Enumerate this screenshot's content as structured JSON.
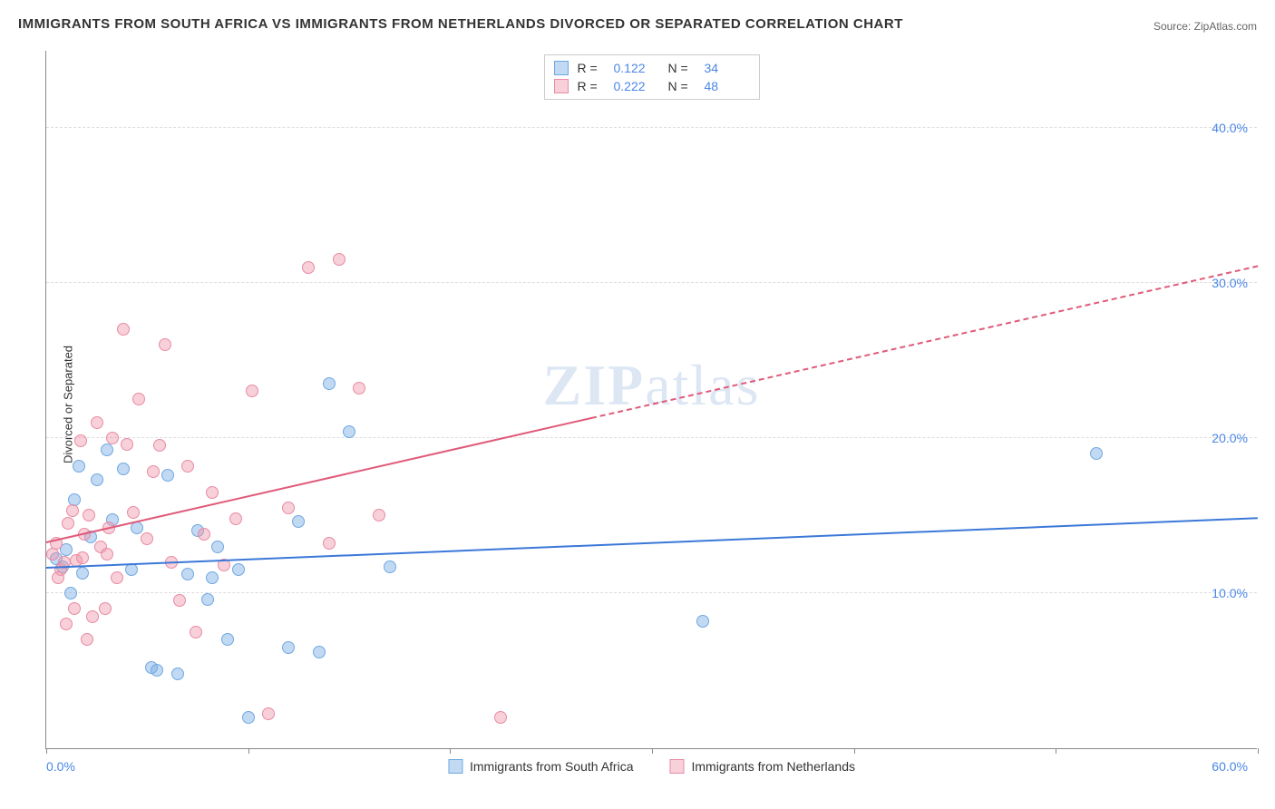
{
  "title": "IMMIGRANTS FROM SOUTH AFRICA VS IMMIGRANTS FROM NETHERLANDS DIVORCED OR SEPARATED CORRELATION CHART",
  "source": "Source: ZipAtlas.com",
  "ylabel": "Divorced or Separated",
  "watermark": "ZIPatlas",
  "chart": {
    "type": "scatter",
    "xlim": [
      0,
      60
    ],
    "ylim": [
      0,
      45
    ],
    "x_ticks_label_min": "0.0%",
    "x_ticks_label_max": "60.0%",
    "x_tick_positions": [
      0,
      10,
      20,
      30,
      40,
      50,
      60
    ],
    "y_gridlines": [
      10,
      20,
      30,
      40
    ],
    "y_tick_labels": [
      "10.0%",
      "20.0%",
      "30.0%",
      "40.0%"
    ],
    "background_color": "#ffffff",
    "grid_color": "#dddddd",
    "axis_color": "#888888",
    "tick_label_color": "#4a86e8",
    "series": [
      {
        "name": "Immigrants from South Africa",
        "color_fill": "rgba(120, 170, 230, 0.45)",
        "color_stroke": "#6fa8e0",
        "marker_size": 14,
        "r": "0.122",
        "n": "34",
        "trend": {
          "x1": 0,
          "y1": 11.6,
          "x2": 60,
          "y2": 14.8,
          "color": "#3b78d8",
          "width": 2,
          "dash": false,
          "solid_until_x": 60
        },
        "points": [
          [
            0.5,
            12.2
          ],
          [
            0.8,
            11.7
          ],
          [
            1.0,
            12.8
          ],
          [
            1.2,
            10.0
          ],
          [
            1.4,
            16.0
          ],
          [
            1.6,
            18.2
          ],
          [
            1.8,
            11.3
          ],
          [
            2.2,
            13.6
          ],
          [
            2.5,
            17.3
          ],
          [
            3.0,
            19.2
          ],
          [
            3.3,
            14.7
          ],
          [
            3.8,
            18.0
          ],
          [
            4.2,
            11.5
          ],
          [
            4.5,
            14.2
          ],
          [
            5.2,
            5.2
          ],
          [
            5.5,
            5.0
          ],
          [
            6.0,
            17.6
          ],
          [
            6.5,
            4.8
          ],
          [
            7.0,
            11.2
          ],
          [
            7.5,
            14.0
          ],
          [
            8.0,
            9.6
          ],
          [
            8.5,
            13.0
          ],
          [
            9.0,
            7.0
          ],
          [
            9.5,
            11.5
          ],
          [
            10.0,
            2.0
          ],
          [
            12.0,
            6.5
          ],
          [
            12.5,
            14.6
          ],
          [
            13.5,
            6.2
          ],
          [
            14.0,
            23.5
          ],
          [
            15.0,
            20.4
          ],
          [
            17.0,
            11.7
          ],
          [
            32.5,
            8.2
          ],
          [
            52.0,
            19.0
          ],
          [
            8.2,
            11.0
          ]
        ]
      },
      {
        "name": "Immigrants from Netherlands",
        "color_fill": "rgba(240, 150, 170, 0.45)",
        "color_stroke": "#e88ba3",
        "marker_size": 14,
        "r": "0.222",
        "n": "48",
        "trend": {
          "x1": 0,
          "y1": 13.2,
          "x2": 60,
          "y2": 31.0,
          "color": "#e05a7a",
          "width": 2,
          "dash": true,
          "solid_until_x": 27
        },
        "points": [
          [
            0.3,
            12.5
          ],
          [
            0.5,
            13.2
          ],
          [
            0.7,
            11.5
          ],
          [
            0.9,
            12.0
          ],
          [
            1.1,
            14.5
          ],
          [
            1.3,
            15.3
          ],
          [
            1.5,
            12.1
          ],
          [
            1.7,
            19.8
          ],
          [
            1.9,
            13.8
          ],
          [
            2.1,
            15.0
          ],
          [
            2.3,
            8.5
          ],
          [
            2.5,
            21.0
          ],
          [
            2.7,
            13.0
          ],
          [
            2.9,
            9.0
          ],
          [
            3.1,
            14.2
          ],
          [
            3.3,
            20.0
          ],
          [
            3.5,
            11.0
          ],
          [
            3.8,
            27.0
          ],
          [
            4.0,
            19.6
          ],
          [
            4.3,
            15.2
          ],
          [
            4.6,
            22.5
          ],
          [
            5.0,
            13.5
          ],
          [
            5.3,
            17.8
          ],
          [
            5.6,
            19.5
          ],
          [
            5.9,
            26.0
          ],
          [
            6.2,
            12.0
          ],
          [
            6.6,
            9.5
          ],
          [
            7.0,
            18.2
          ],
          [
            7.4,
            7.5
          ],
          [
            7.8,
            13.8
          ],
          [
            8.2,
            16.5
          ],
          [
            8.8,
            11.8
          ],
          [
            9.4,
            14.8
          ],
          [
            10.2,
            23.0
          ],
          [
            11.0,
            2.2
          ],
          [
            12.0,
            15.5
          ],
          [
            13.0,
            31.0
          ],
          [
            14.0,
            13.2
          ],
          [
            14.5,
            31.5
          ],
          [
            15.5,
            23.2
          ],
          [
            16.5,
            15.0
          ],
          [
            22.5,
            2.0
          ],
          [
            1.0,
            8.0
          ],
          [
            1.4,
            9.0
          ],
          [
            2.0,
            7.0
          ],
          [
            0.6,
            11.0
          ],
          [
            1.8,
            12.3
          ],
          [
            3.0,
            12.5
          ]
        ]
      }
    ]
  },
  "top_legend": {
    "r_label": "R  =",
    "n_label": "N  ="
  },
  "bottom_legend": {
    "series1": "Immigrants from South Africa",
    "series2": "Immigrants from Netherlands"
  }
}
